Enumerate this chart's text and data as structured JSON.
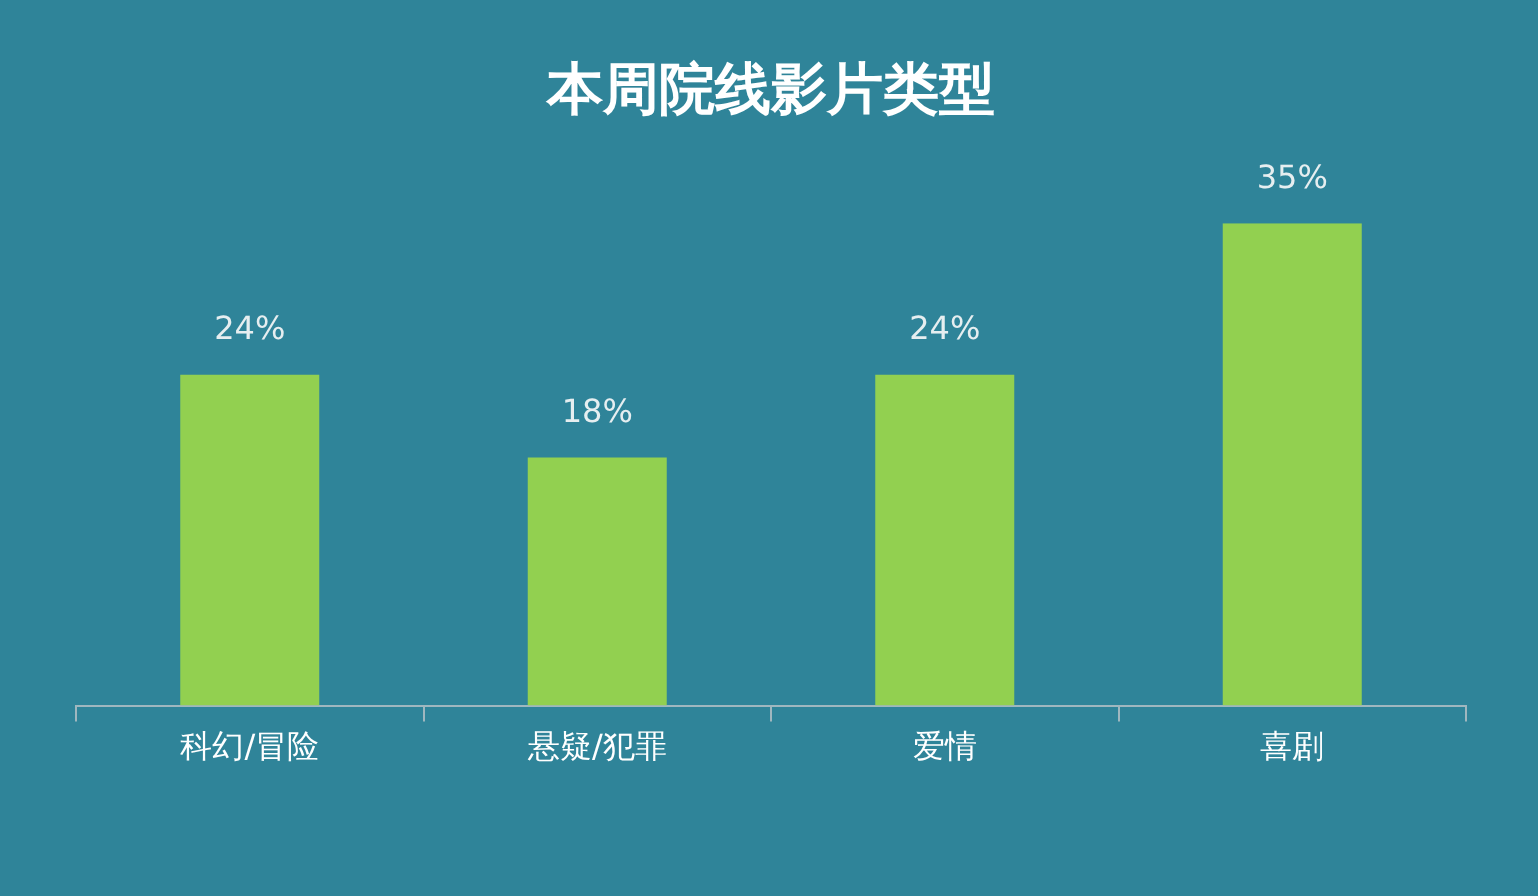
{
  "chart_data": {
    "type": "bar",
    "title": "本周院线影片类型",
    "categories": [
      "科幻/冒险",
      "悬疑/犯罪",
      "爱情",
      "喜剧"
    ],
    "values": [
      24,
      18,
      24,
      35
    ],
    "color": "#92d050",
    "data_labels": true,
    "value_labels": [
      "24%",
      "18%",
      "24%",
      "35%"
    ]
  }
}
